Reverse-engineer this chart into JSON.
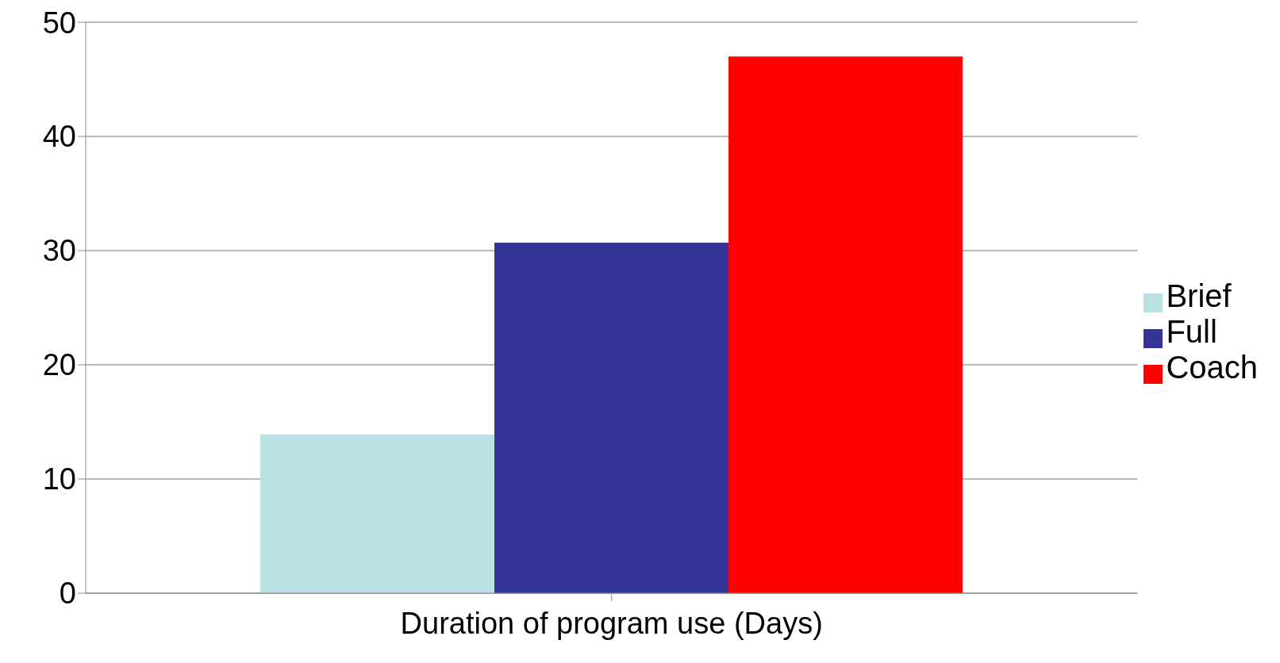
{
  "chart_data": {
    "type": "bar",
    "categories": [
      "Duration of program use (Days)"
    ],
    "series": [
      {
        "name": "Brief",
        "color": "#b9e0e3",
        "values": [
          13.9
        ]
      },
      {
        "name": "Full",
        "color": "#343397",
        "values": [
          30.7
        ]
      },
      {
        "name": "Coach",
        "color": "#ff0000",
        "values": [
          47.0
        ]
      }
    ],
    "ylim": [
      0,
      50
    ],
    "yticks": [
      0,
      10,
      20,
      30,
      40,
      50
    ],
    "grid": "y",
    "legend": "right"
  }
}
